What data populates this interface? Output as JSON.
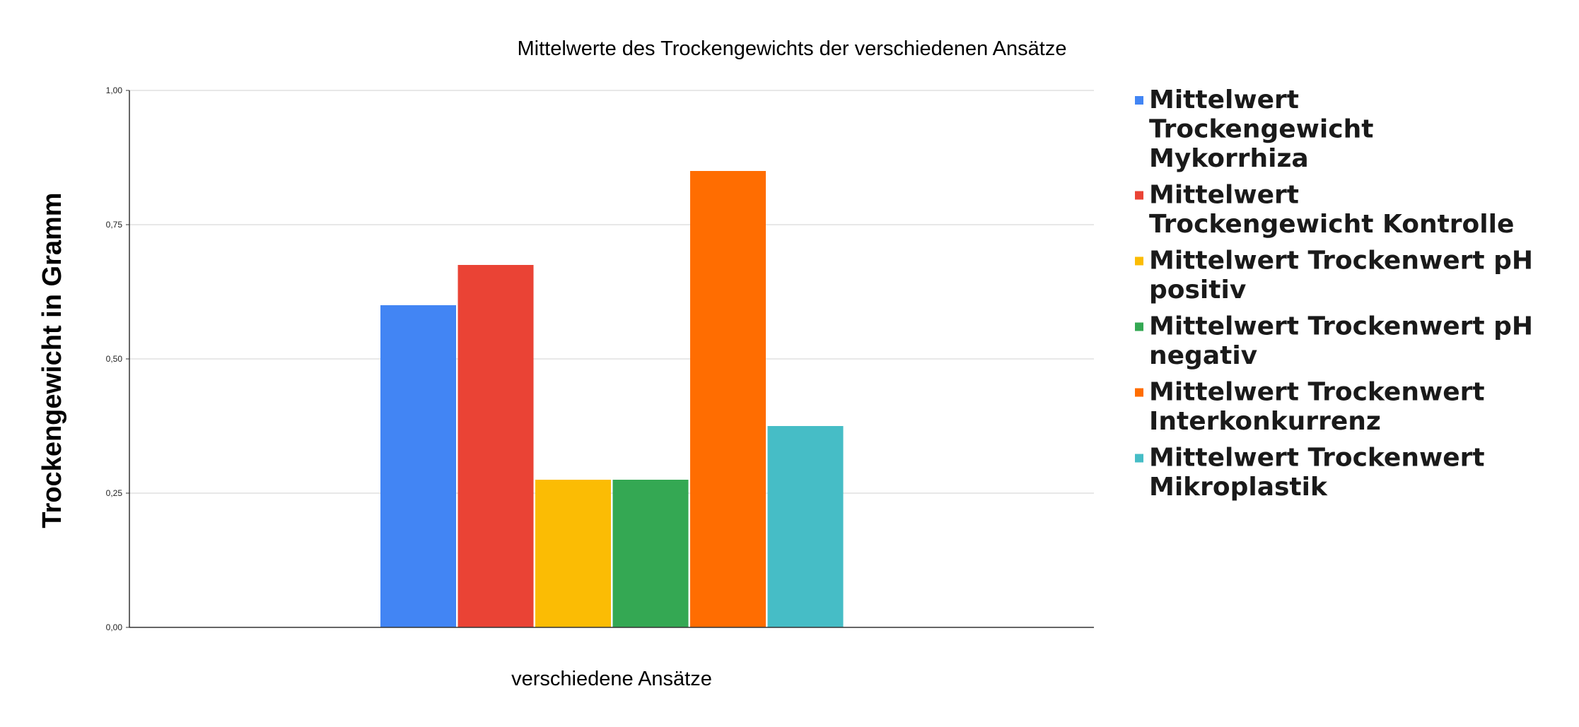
{
  "chart_data": {
    "type": "bar",
    "title": "Mittelwerte des Trockengewichts der verschiedenen Ansätze",
    "xlabel": "verschiedene Ansätze",
    "ylabel": "Trockengewicht in Gramm",
    "ylim": [
      0,
      1
    ],
    "yticks": [
      "0,00",
      "0,25",
      "0,50",
      "0,75",
      "1,00"
    ],
    "ytick_values": [
      0,
      0.25,
      0.5,
      0.75,
      1
    ],
    "grid": true,
    "legend_position": "right",
    "series": [
      {
        "name": "Mittelwert Trockengewicht Mykorrhiza",
        "legend_lines": [
          "Mittelwert",
          "Trockengewicht",
          "Mykorrhiza"
        ],
        "values": [
          0.6
        ],
        "color": "#4285f4"
      },
      {
        "name": "Mittelwert Trockengewicht Kontrolle",
        "legend_lines": [
          "Mittelwert",
          "Trockengewicht Kontrolle"
        ],
        "values": [
          0.675
        ],
        "color": "#ea4335"
      },
      {
        "name": "Mittelwert Trockenwert pH positiv",
        "legend_lines": [
          "Mittelwert Trockenwert pH",
          "positiv"
        ],
        "values": [
          0.275
        ],
        "color": "#fbbc04"
      },
      {
        "name": "Mittelwert Trockenwert pH negativ",
        "legend_lines": [
          "Mittelwert Trockenwert pH",
          "negativ"
        ],
        "values": [
          0.275
        ],
        "color": "#34a853"
      },
      {
        "name": "Mittelwert Trockenwert Interkonkurrenz",
        "legend_lines": [
          "Mittelwert Trockenwert",
          "Interkonkurrenz"
        ],
        "values": [
          0.85
        ],
        "color": "#ff6d01"
      },
      {
        "name": "Mittelwert Trockenwert Mikroplastik",
        "legend_lines": [
          "Mittelwert Trockenwert",
          "Mikroplastik"
        ],
        "values": [
          0.375
        ],
        "color": "#46bdc6"
      }
    ]
  }
}
